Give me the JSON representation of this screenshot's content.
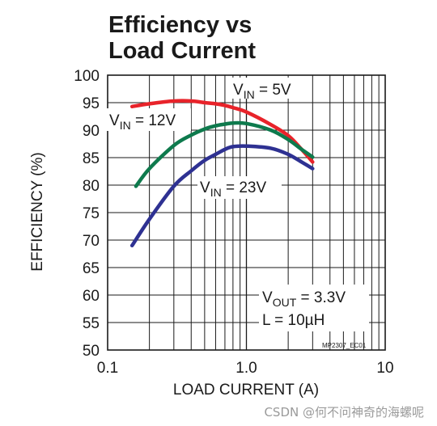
{
  "chart_data": {
    "type": "line",
    "title_lines": [
      "Efficiency vs",
      "Load Current"
    ],
    "xlabel": "LOAD CURRENT (A)",
    "ylabel": "EFFICIENCY (%)",
    "x_scale": "log",
    "xlim": [
      0.1,
      10
    ],
    "ylim": [
      50,
      100
    ],
    "x_ticks": [
      {
        "value": 0.1,
        "label": "0.1"
      },
      {
        "value": 1,
        "label": "1.0"
      },
      {
        "value": 10,
        "label": "10"
      }
    ],
    "y_ticks": [
      50,
      55,
      60,
      65,
      70,
      75,
      80,
      85,
      90,
      95,
      100
    ],
    "grid": true,
    "series": [
      {
        "name": "VIN = 5V",
        "label_main": "V",
        "label_sub": "IN",
        "label_rest": " = 5V",
        "color": "#e8232a",
        "points": [
          [
            0.15,
            94.3
          ],
          [
            0.2,
            94.8
          ],
          [
            0.3,
            95.3
          ],
          [
            0.4,
            95.3
          ],
          [
            0.5,
            95.0
          ],
          [
            0.6,
            94.8
          ],
          [
            0.7,
            94.5
          ],
          [
            0.8,
            94.1
          ],
          [
            1.0,
            93.3
          ],
          [
            1.5,
            91.0
          ],
          [
            2.0,
            89.0
          ],
          [
            2.5,
            86.5
          ],
          [
            3.0,
            84.2
          ]
        ]
      },
      {
        "name": "VIN = 12V",
        "label_main": "V",
        "label_sub": "IN",
        "label_rest": " = 12V",
        "color": "#0e7a4d",
        "points": [
          [
            0.16,
            79.8
          ],
          [
            0.2,
            83.0
          ],
          [
            0.3,
            87.2
          ],
          [
            0.4,
            89.1
          ],
          [
            0.5,
            90.2
          ],
          [
            0.6,
            90.8
          ],
          [
            0.7,
            91.1
          ],
          [
            0.8,
            91.3
          ],
          [
            1.0,
            91.2
          ],
          [
            1.5,
            90.0
          ],
          [
            2.0,
            88.3
          ],
          [
            2.5,
            86.5
          ],
          [
            3.0,
            85.1
          ]
        ]
      },
      {
        "name": "VIN = 23V",
        "label_main": "V",
        "label_sub": "IN",
        "label_rest": " = 23V",
        "color": "#2e3192",
        "points": [
          [
            0.15,
            69.0
          ],
          [
            0.2,
            73.8
          ],
          [
            0.3,
            79.8
          ],
          [
            0.4,
            82.6
          ],
          [
            0.5,
            84.5
          ],
          [
            0.6,
            85.6
          ],
          [
            0.7,
            86.5
          ],
          [
            0.8,
            87.0
          ],
          [
            1.0,
            87.1
          ],
          [
            1.5,
            86.7
          ],
          [
            2.0,
            85.6
          ],
          [
            2.5,
            84.2
          ],
          [
            3.0,
            83.0
          ]
        ]
      }
    ],
    "annotations": [
      {
        "main": "V",
        "sub": "OUT",
        "rest": " = 3.3V"
      },
      {
        "main": "L = 10µH",
        "sub": "",
        "rest": ""
      }
    ],
    "figure_code": "MP2307_EC01"
  },
  "watermark": "CSDN @何不问神奇的海螺呢"
}
